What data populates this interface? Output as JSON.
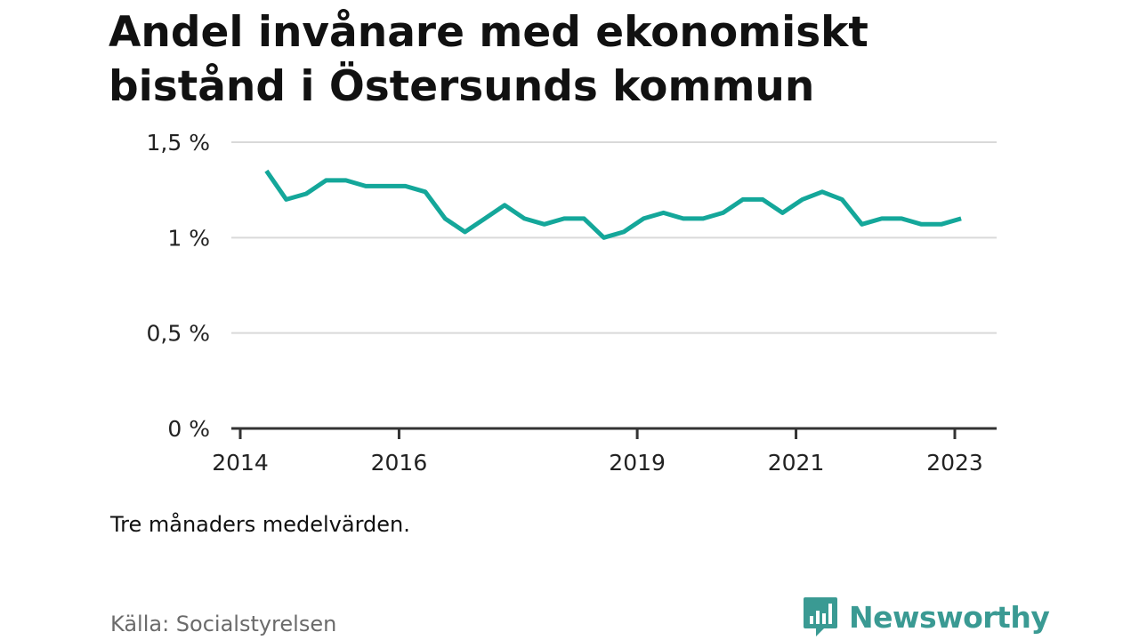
{
  "title_lines": [
    "Andel invånare med ekonomiskt",
    "bistånd i Östersunds kommun"
  ],
  "note": "Tre månaders medelvärden.",
  "source": "Källa: Socialstyrelsen",
  "brand": "Newsworthy",
  "colors": {
    "line": "#14a79a",
    "grid": "#d9d9d9",
    "axis": "#333333",
    "brand": "#3a9a93"
  },
  "chart_data": {
    "type": "line",
    "xlim": [
      2014.0,
      2023.25
    ],
    "ylim": [
      0,
      1.5
    ],
    "y_ticks": [
      {
        "value": 0,
        "label": "0 %"
      },
      {
        "value": 0.5,
        "label": "0,5 %"
      },
      {
        "value": 1,
        "label": "1 %"
      },
      {
        "value": 1.5,
        "label": "1,5 %"
      }
    ],
    "x_ticks": [
      {
        "value": 2014,
        "label": "2014"
      },
      {
        "value": 2016,
        "label": "2016"
      },
      {
        "value": 2019,
        "label": "2019"
      },
      {
        "value": 2021,
        "label": "2021"
      },
      {
        "value": 2023,
        "label": "2023"
      }
    ],
    "grid": true,
    "series": [
      {
        "points": [
          [
            2014.33,
            1.35
          ],
          [
            2014.58,
            1.2
          ],
          [
            2014.83,
            1.23
          ],
          [
            2015.08,
            1.3
          ],
          [
            2015.33,
            1.3
          ],
          [
            2015.58,
            1.27
          ],
          [
            2015.83,
            1.27
          ],
          [
            2016.08,
            1.27
          ],
          [
            2016.33,
            1.24
          ],
          [
            2016.58,
            1.1
          ],
          [
            2016.83,
            1.03
          ],
          [
            2017.08,
            1.1
          ],
          [
            2017.33,
            1.17
          ],
          [
            2017.58,
            1.1
          ],
          [
            2017.83,
            1.07
          ],
          [
            2018.08,
            1.1
          ],
          [
            2018.33,
            1.1
          ],
          [
            2018.58,
            1.0
          ],
          [
            2018.83,
            1.03
          ],
          [
            2019.08,
            1.1
          ],
          [
            2019.33,
            1.13
          ],
          [
            2019.58,
            1.1
          ],
          [
            2019.83,
            1.1
          ],
          [
            2020.08,
            1.13
          ],
          [
            2020.33,
            1.2
          ],
          [
            2020.58,
            1.2
          ],
          [
            2020.83,
            1.13
          ],
          [
            2021.08,
            1.2
          ],
          [
            2021.33,
            1.24
          ],
          [
            2021.58,
            1.2
          ],
          [
            2021.83,
            1.07
          ],
          [
            2022.08,
            1.1
          ],
          [
            2022.33,
            1.1
          ],
          [
            2022.58,
            1.07
          ],
          [
            2022.83,
            1.07
          ],
          [
            2023.08,
            1.1
          ]
        ]
      }
    ]
  }
}
